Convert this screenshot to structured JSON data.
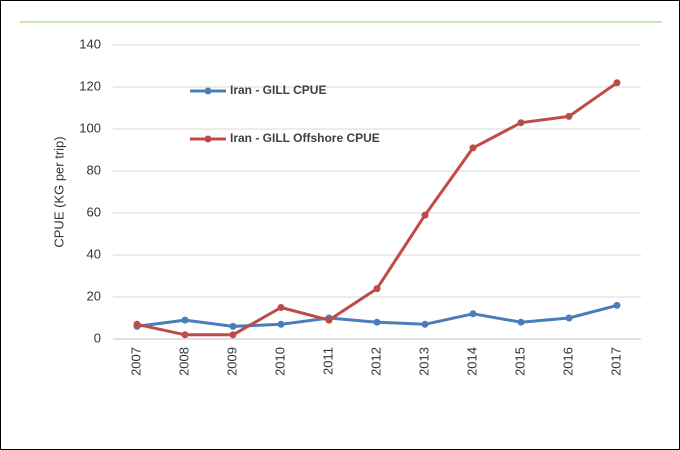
{
  "chart_data": {
    "type": "line",
    "y_label": "CPUE (KG per trip)",
    "categories": [
      "2007",
      "2008",
      "2009",
      "2010",
      "2011",
      "2012",
      "2013",
      "2014",
      "2015",
      "2016",
      "2017"
    ],
    "series": [
      {
        "name": "Iran - GILL CPUE",
        "color": "#4a7ebb",
        "values": [
          6,
          9,
          6,
          7,
          10,
          8,
          7,
          12,
          8,
          10,
          16
        ]
      },
      {
        "name": "Iran - GILL Offshore CPUE",
        "color": "#be4b48",
        "values": [
          7,
          2,
          2,
          15,
          9,
          24,
          59,
          91,
          103,
          106,
          122
        ]
      }
    ],
    "ylim": [
      0,
      140
    ],
    "yticks": [
      0,
      20,
      40,
      60,
      80,
      100,
      120,
      140
    ],
    "grid": true
  }
}
